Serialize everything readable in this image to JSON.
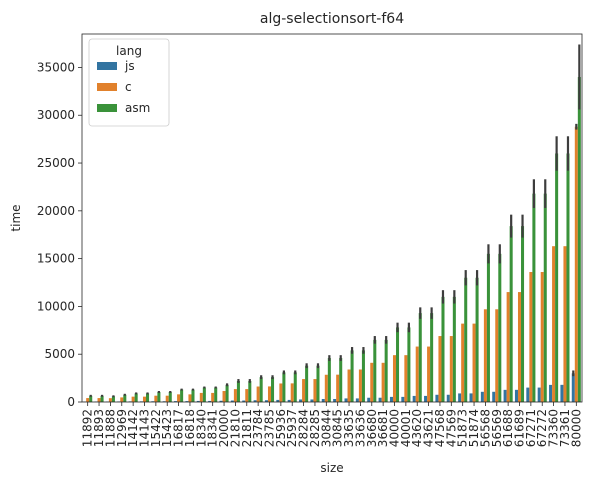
{
  "chart_data": {
    "type": "bar",
    "title": "alg-selectionsort-f64",
    "xlabel": "size",
    "ylabel": "time",
    "ylim": [
      0,
      38500
    ],
    "yticks": [
      0,
      5000,
      10000,
      15000,
      20000,
      25000,
      30000,
      35000
    ],
    "yticklabels": [
      "0",
      "5000",
      "10000",
      "15000",
      "20000",
      "25000",
      "30000",
      "35000"
    ],
    "grid": false,
    "legend": {
      "title": "lang",
      "placement": "top-left"
    },
    "categories": [
      "11892",
      "11893",
      "11888",
      "12969",
      "14142",
      "14143",
      "15422",
      "15423",
      "16817",
      "16818",
      "18340",
      "18341",
      "20000",
      "21810",
      "21811",
      "23784",
      "23785",
      "25936",
      "25937",
      "28284",
      "28285",
      "30844",
      "30845",
      "33635",
      "33636",
      "36680",
      "36681",
      "40000",
      "40001",
      "43620",
      "43621",
      "47568",
      "47569",
      "51873",
      "51874",
      "56568",
      "56569",
      "61688",
      "61689",
      "67271",
      "67272",
      "73360",
      "73361",
      "80000"
    ],
    "series": [
      {
        "name": "js",
        "color": "#3274a1",
        "values": [
          45,
          50,
          48,
          58,
          66,
          66,
          80,
          80,
          93,
          93,
          111,
          112,
          130,
          155,
          155,
          185,
          185,
          218,
          218,
          265,
          265,
          315,
          315,
          375,
          376,
          446,
          447,
          535,
          536,
          636,
          637,
          755,
          757,
          898,
          900,
          1066,
          1068,
          1270,
          1272,
          1506,
          1510,
          1791,
          1795,
          3000
        ],
        "errors": [
          0,
          0,
          0,
          0,
          0,
          0,
          0,
          0,
          0,
          0,
          0,
          0,
          0,
          0,
          0,
          0,
          0,
          0,
          0,
          0,
          0,
          0,
          0,
          0,
          0,
          0,
          0,
          0,
          0,
          0,
          0,
          0,
          0,
          0,
          0,
          0,
          0,
          0,
          0,
          0,
          0,
          0,
          0,
          300
        ]
      },
      {
        "name": "c",
        "color": "#e1812c",
        "values": [
          410,
          410,
          400,
          480,
          560,
          560,
          660,
          660,
          800,
          800,
          950,
          950,
          1150,
          1350,
          1350,
          1620,
          1630,
          1940,
          1950,
          2400,
          2400,
          2850,
          2860,
          3400,
          3400,
          4100,
          4100,
          4900,
          4900,
          5800,
          5800,
          6900,
          6900,
          8200,
          8200,
          9700,
          9700,
          11500,
          11500,
          13600,
          13600,
          16300,
          16300,
          28800
        ],
        "errors": [
          0,
          0,
          0,
          0,
          0,
          0,
          0,
          0,
          0,
          0,
          0,
          0,
          0,
          0,
          0,
          0,
          0,
          0,
          0,
          0,
          0,
          0,
          0,
          0,
          0,
          0,
          0,
          0,
          0,
          0,
          0,
          0,
          0,
          0,
          0,
          0,
          0,
          0,
          0,
          0,
          0,
          0,
          0,
          300
        ]
      },
      {
        "name": "asm",
        "color": "#3a923a",
        "values": [
          650,
          650,
          600,
          760,
          900,
          900,
          1050,
          1050,
          1300,
          1300,
          1520,
          1520,
          1800,
          2200,
          2200,
          2600,
          2600,
          3100,
          3100,
          3800,
          3800,
          4600,
          4600,
          5400,
          5400,
          6500,
          6500,
          7800,
          7800,
          9300,
          9300,
          11000,
          11000,
          13000,
          13000,
          15500,
          15500,
          18400,
          18400,
          21800,
          21800,
          26000,
          26000,
          34000
        ],
        "errors": [
          100,
          100,
          100,
          100,
          100,
          100,
          100,
          100,
          100,
          100,
          100,
          100,
          150,
          200,
          200,
          200,
          200,
          200,
          200,
          250,
          250,
          300,
          300,
          350,
          350,
          400,
          400,
          500,
          500,
          600,
          600,
          700,
          700,
          800,
          800,
          1000,
          1000,
          1200,
          1200,
          1500,
          1500,
          1800,
          1800,
          3400
        ]
      }
    ]
  }
}
